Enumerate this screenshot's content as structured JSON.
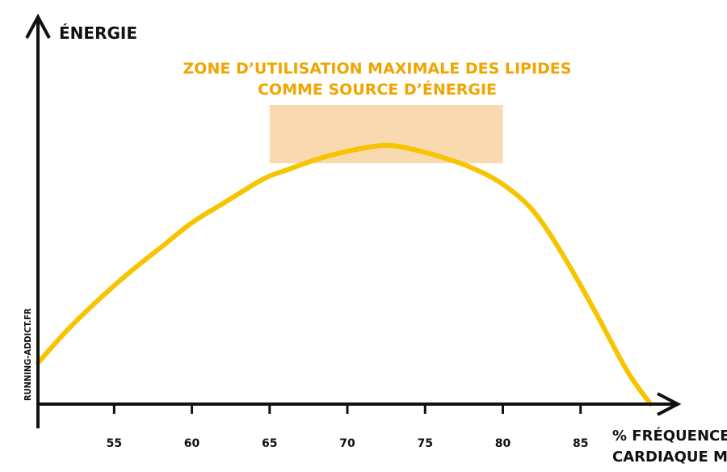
{
  "chart_data": {
    "type": "line",
    "title": [
      "ZONE D’UTILISATION MAXIMALE DES LIPIDES",
      "COMME SOURCE D’ÉNERGIE"
    ],
    "ylabel": "ÉNERGIE",
    "xlabel": [
      "% FRÉQUENCE",
      "CARDIAQUE MAX"
    ],
    "watermark": "RUNNING-ADDICT.FR",
    "xlim": [
      50.1,
      91.3
    ],
    "ylim": [
      0,
      100
    ],
    "x_ticks": [
      55,
      60,
      65,
      70,
      75,
      80,
      85
    ],
    "zone": {
      "x_start": 65,
      "x_end": 80
    },
    "series": [
      {
        "x": [
          50.1,
          52,
          54,
          56,
          58,
          60,
          62,
          64,
          65,
          66,
          68,
          70,
          72,
          73,
          74,
          76,
          78,
          80,
          82,
          84,
          86,
          88,
          89.5
        ],
        "y": [
          15,
          27,
          38,
          48,
          57,
          66,
          73,
          80,
          83,
          85,
          89,
          92,
          94,
          94,
          93,
          90,
          86,
          80,
          70,
          53,
          33,
          12,
          0
        ]
      }
    ],
    "colors": {
      "curve": "#f7c400",
      "zone": "#f9d9b0",
      "title": "#f0a500",
      "axis": "#111111"
    }
  }
}
